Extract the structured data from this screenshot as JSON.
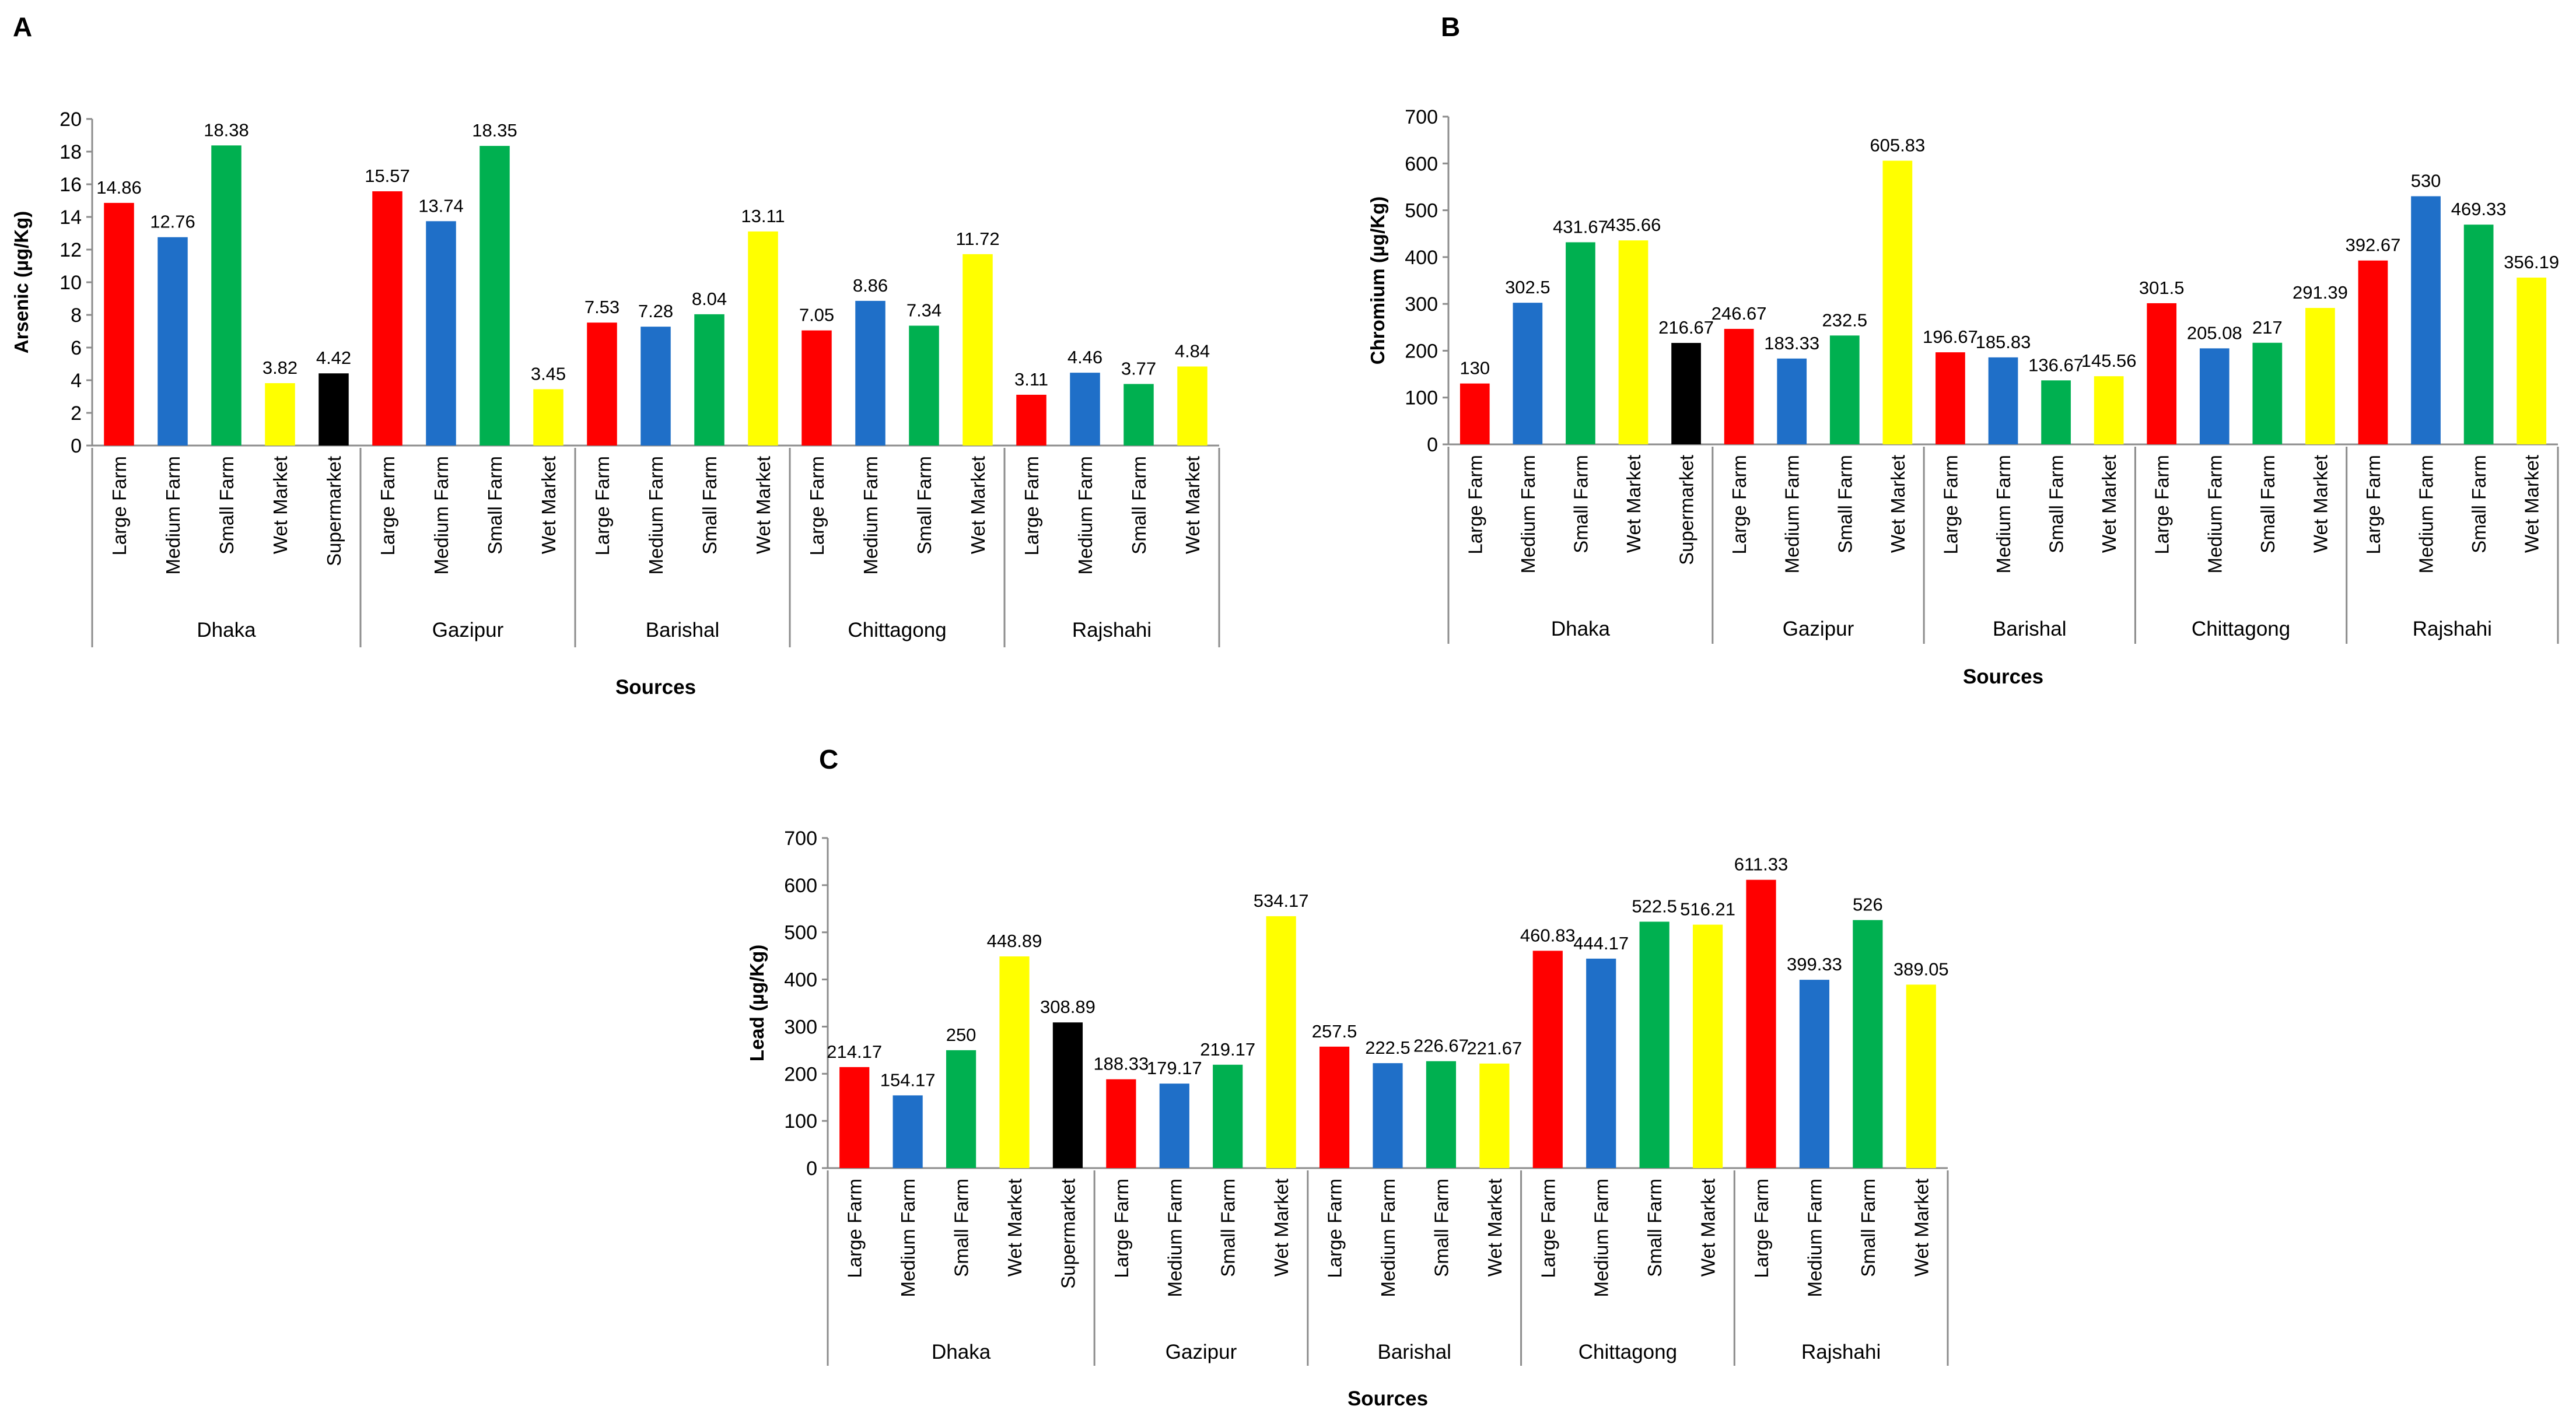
{
  "figure": {
    "source_label": "Sources",
    "colors": {
      "Large Farm": "#ff0000",
      "Medium Farm": "#1f6fc8",
      "Small Farm": "#00b050",
      "Wet Market": "#ffff00",
      "Supermarket": "#000000"
    }
  },
  "chart_data": [
    {
      "panel": "A",
      "type": "bar",
      "ylabel": "Arsenic (µg/Kg)",
      "xlabel": "Sources",
      "ylim": [
        0,
        20
      ],
      "ytick_step": 2,
      "groups": [
        {
          "name": "Dhaka",
          "bars": [
            {
              "category": "Large Farm",
              "value": 14.86,
              "label": "14.86"
            },
            {
              "category": "Medium Farm",
              "value": 12.76,
              "label": "12.76"
            },
            {
              "category": "Small Farm",
              "value": 18.38,
              "label": "18.38"
            },
            {
              "category": "Wet Market",
              "value": 3.82,
              "label": "3.82"
            },
            {
              "category": "Supermarket",
              "value": 4.42,
              "label": "4.42"
            }
          ]
        },
        {
          "name": "Gazipur",
          "bars": [
            {
              "category": "Large Farm",
              "value": 15.57,
              "label": "15.57"
            },
            {
              "category": "Medium Farm",
              "value": 13.74,
              "label": "13.74"
            },
            {
              "category": "Small Farm",
              "value": 18.35,
              "label": "18.35"
            },
            {
              "category": "Wet Market",
              "value": 3.45,
              "label": "3.45"
            }
          ]
        },
        {
          "name": "Barishal",
          "bars": [
            {
              "category": "Large Farm",
              "value": 7.53,
              "label": "7.53"
            },
            {
              "category": "Medium Farm",
              "value": 7.28,
              "label": "7.28"
            },
            {
              "category": "Small Farm",
              "value": 8.04,
              "label": "8.04"
            },
            {
              "category": "Wet Market",
              "value": 13.11,
              "label": "13.11"
            }
          ]
        },
        {
          "name": "Chittagong",
          "bars": [
            {
              "category": "Large Farm",
              "value": 7.05,
              "label": "7.05"
            },
            {
              "category": "Medium Farm",
              "value": 8.86,
              "label": "8.86"
            },
            {
              "category": "Small Farm",
              "value": 7.34,
              "label": "7.34"
            },
            {
              "category": "Wet Market",
              "value": 11.72,
              "label": "11.72"
            }
          ]
        },
        {
          "name": "Rajshahi",
          "bars": [
            {
              "category": "Large Farm",
              "value": 3.11,
              "label": "3.11"
            },
            {
              "category": "Medium Farm",
              "value": 4.46,
              "label": "4.46"
            },
            {
              "category": "Small Farm",
              "value": 3.77,
              "label": "3.77"
            },
            {
              "category": "Wet Market",
              "value": 4.84,
              "label": "4.84"
            }
          ]
        }
      ]
    },
    {
      "panel": "B",
      "type": "bar",
      "ylabel": "Chromium  (µg/Kg)",
      "xlabel": "Sources",
      "ylim": [
        0,
        700
      ],
      "ytick_step": 100,
      "groups": [
        {
          "name": "Dhaka",
          "bars": [
            {
              "category": "Large Farm",
              "value": 130,
              "label": "130"
            },
            {
              "category": "Medium Farm",
              "value": 302.5,
              "label": "302.5"
            },
            {
              "category": "Small Farm",
              "value": 431.67,
              "label": "431.67"
            },
            {
              "category": "Wet Market",
              "value": 435.66,
              "label": "435.66"
            },
            {
              "category": "Supermarket",
              "value": 216.67,
              "label": "216.67"
            }
          ]
        },
        {
          "name": "Gazipur",
          "bars": [
            {
              "category": "Large Farm",
              "value": 246.67,
              "label": "246.67"
            },
            {
              "category": "Medium Farm",
              "value": 183.33,
              "label": "183.33"
            },
            {
              "category": "Small Farm",
              "value": 232.5,
              "label": "232.5"
            },
            {
              "category": "Wet Market",
              "value": 605.83,
              "label": "605.83"
            }
          ]
        },
        {
          "name": "Barishal",
          "bars": [
            {
              "category": "Large Farm",
              "value": 196.67,
              "label": "196.67"
            },
            {
              "category": "Medium Farm",
              "value": 185.83,
              "label": "185.83"
            },
            {
              "category": "Small Farm",
              "value": 136.67,
              "label": "136.67"
            },
            {
              "category": "Wet Market",
              "value": 145.56,
              "label": "145.56"
            }
          ]
        },
        {
          "name": "Chittagong",
          "bars": [
            {
              "category": "Large Farm",
              "value": 301.5,
              "label": "301.5"
            },
            {
              "category": "Medium Farm",
              "value": 205.08,
              "label": "205.08"
            },
            {
              "category": "Small Farm",
              "value": 217,
              "label": "217"
            },
            {
              "category": "Wet Market",
              "value": 291.39,
              "label": "291.39"
            }
          ]
        },
        {
          "name": "Rajshahi",
          "bars": [
            {
              "category": "Large Farm",
              "value": 392.67,
              "label": "392.67"
            },
            {
              "category": "Medium Farm",
              "value": 530,
              "label": "530"
            },
            {
              "category": "Small Farm",
              "value": 469.33,
              "label": "469.33"
            },
            {
              "category": "Wet Market",
              "value": 356.19,
              "label": "356.19"
            }
          ]
        }
      ]
    },
    {
      "panel": "C",
      "type": "bar",
      "ylabel": "Lead (µg/Kg)",
      "xlabel": "Sources",
      "ylim": [
        0,
        700
      ],
      "ytick_step": 100,
      "groups": [
        {
          "name": "Dhaka",
          "bars": [
            {
              "category": "Large Farm",
              "value": 214.17,
              "label": "214.17"
            },
            {
              "category": "Medium Farm",
              "value": 154.17,
              "label": "154.17"
            },
            {
              "category": "Small Farm",
              "value": 250,
              "label": "250"
            },
            {
              "category": "Wet Market",
              "value": 448.89,
              "label": "448.89"
            },
            {
              "category": "Supermarket",
              "value": 308.89,
              "label": "308.89"
            }
          ]
        },
        {
          "name": "Gazipur",
          "bars": [
            {
              "category": "Large Farm",
              "value": 188.33,
              "label": "188.33"
            },
            {
              "category": "Medium Farm",
              "value": 179.17,
              "label": "179.17"
            },
            {
              "category": "Small Farm",
              "value": 219.17,
              "label": "219.17"
            },
            {
              "category": "Wet Market",
              "value": 534.17,
              "label": "534.17"
            }
          ]
        },
        {
          "name": "Barishal",
          "bars": [
            {
              "category": "Large Farm",
              "value": 257.5,
              "label": "257.5"
            },
            {
              "category": "Medium Farm",
              "value": 222.5,
              "label": "222.5"
            },
            {
              "category": "Small Farm",
              "value": 226.67,
              "label": "226.67"
            },
            {
              "category": "Wet Market",
              "value": 221.67,
              "label": "221.67"
            }
          ]
        },
        {
          "name": "Chittagong",
          "bars": [
            {
              "category": "Large Farm",
              "value": 460.83,
              "label": "460.83"
            },
            {
              "category": "Medium Farm",
              "value": 444.17,
              "label": "444.17"
            },
            {
              "category": "Small Farm",
              "value": 522.5,
              "label": "522.5"
            },
            {
              "category": "Wet Market",
              "value": 516.21,
              "label": "516.21"
            }
          ]
        },
        {
          "name": "Rajshahi",
          "bars": [
            {
              "category": "Large Farm",
              "value": 611.33,
              "label": "611.33"
            },
            {
              "category": "Medium Farm",
              "value": 399.33,
              "label": "399.33"
            },
            {
              "category": "Small Farm",
              "value": 526,
              "label": "526"
            },
            {
              "category": "Wet Market",
              "value": 389.05,
              "label": "389.05"
            }
          ]
        }
      ]
    }
  ]
}
